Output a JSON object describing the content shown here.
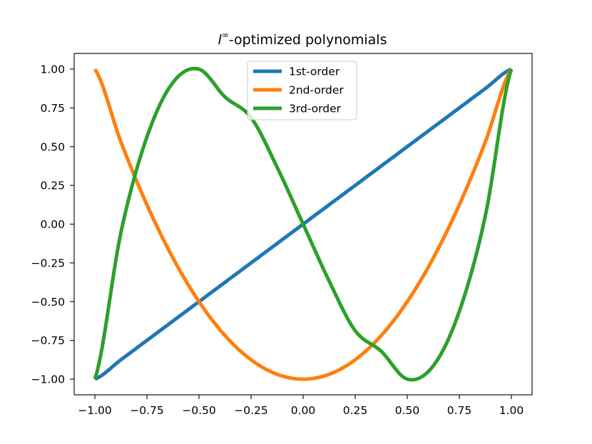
{
  "chart_data": {
    "type": "line",
    "title": "",
    "title_parts": [
      "l",
      "∞",
      "-optimized polynomials"
    ],
    "xlabel": "",
    "ylabel": "",
    "xlim": [
      -1.0,
      1.0
    ],
    "ylim": [
      -1.0,
      1.0
    ],
    "x_ticks": [
      -1.0,
      -0.75,
      -0.5,
      -0.25,
      0.0,
      0.25,
      0.5,
      0.75,
      1.0
    ],
    "x_tick_labels": [
      "−1.00",
      "−0.75",
      "−0.50",
      "−0.25",
      "0.00",
      "0.25",
      "0.50",
      "0.75",
      "1.00"
    ],
    "y_ticks": [
      -1.0,
      -0.75,
      -0.5,
      -0.25,
      0.0,
      0.25,
      0.5,
      0.75,
      1.0
    ],
    "y_tick_labels": [
      "−1.00",
      "−0.75",
      "−0.50",
      "−0.25",
      "0.00",
      "0.25",
      "0.50",
      "0.75",
      "1.00"
    ],
    "grid": false,
    "legend_position": "top-center",
    "x": [
      -1.0,
      -0.875,
      -0.75,
      -0.625,
      -0.5,
      -0.375,
      -0.25,
      -0.125,
      0.0,
      0.125,
      0.25,
      0.375,
      0.5,
      0.625,
      0.75,
      0.875,
      1.0
    ],
    "series": [
      {
        "name": "1st-order",
        "color": "#1f77b4",
        "values": [
          -1.0,
          -0.875,
          -0.75,
          -0.625,
          -0.5,
          -0.375,
          -0.25,
          -0.125,
          0.0,
          0.125,
          0.25,
          0.375,
          0.5,
          0.625,
          0.75,
          0.875,
          1.0
        ]
      },
      {
        "name": "2nd-order",
        "color": "#ff7f0e",
        "values": [
          1.0,
          0.53125,
          0.125,
          -0.21875,
          -0.5,
          -0.71875,
          -0.875,
          -0.96875,
          -1.0,
          -0.96875,
          -0.875,
          -0.71875,
          -0.5,
          -0.21875,
          0.125,
          0.53125,
          1.0
        ]
      },
      {
        "name": "3rd-order",
        "color": "#2ca02c",
        "values": [
          -1.0,
          -0.0547,
          0.5625,
          0.9141,
          1.0,
          0.8203,
          0.6875,
          0.3672,
          0.0,
          -0.3672,
          -0.6875,
          -0.8203,
          -1.0,
          -0.9141,
          -0.5625,
          0.0547,
          1.0
        ]
      }
    ]
  }
}
